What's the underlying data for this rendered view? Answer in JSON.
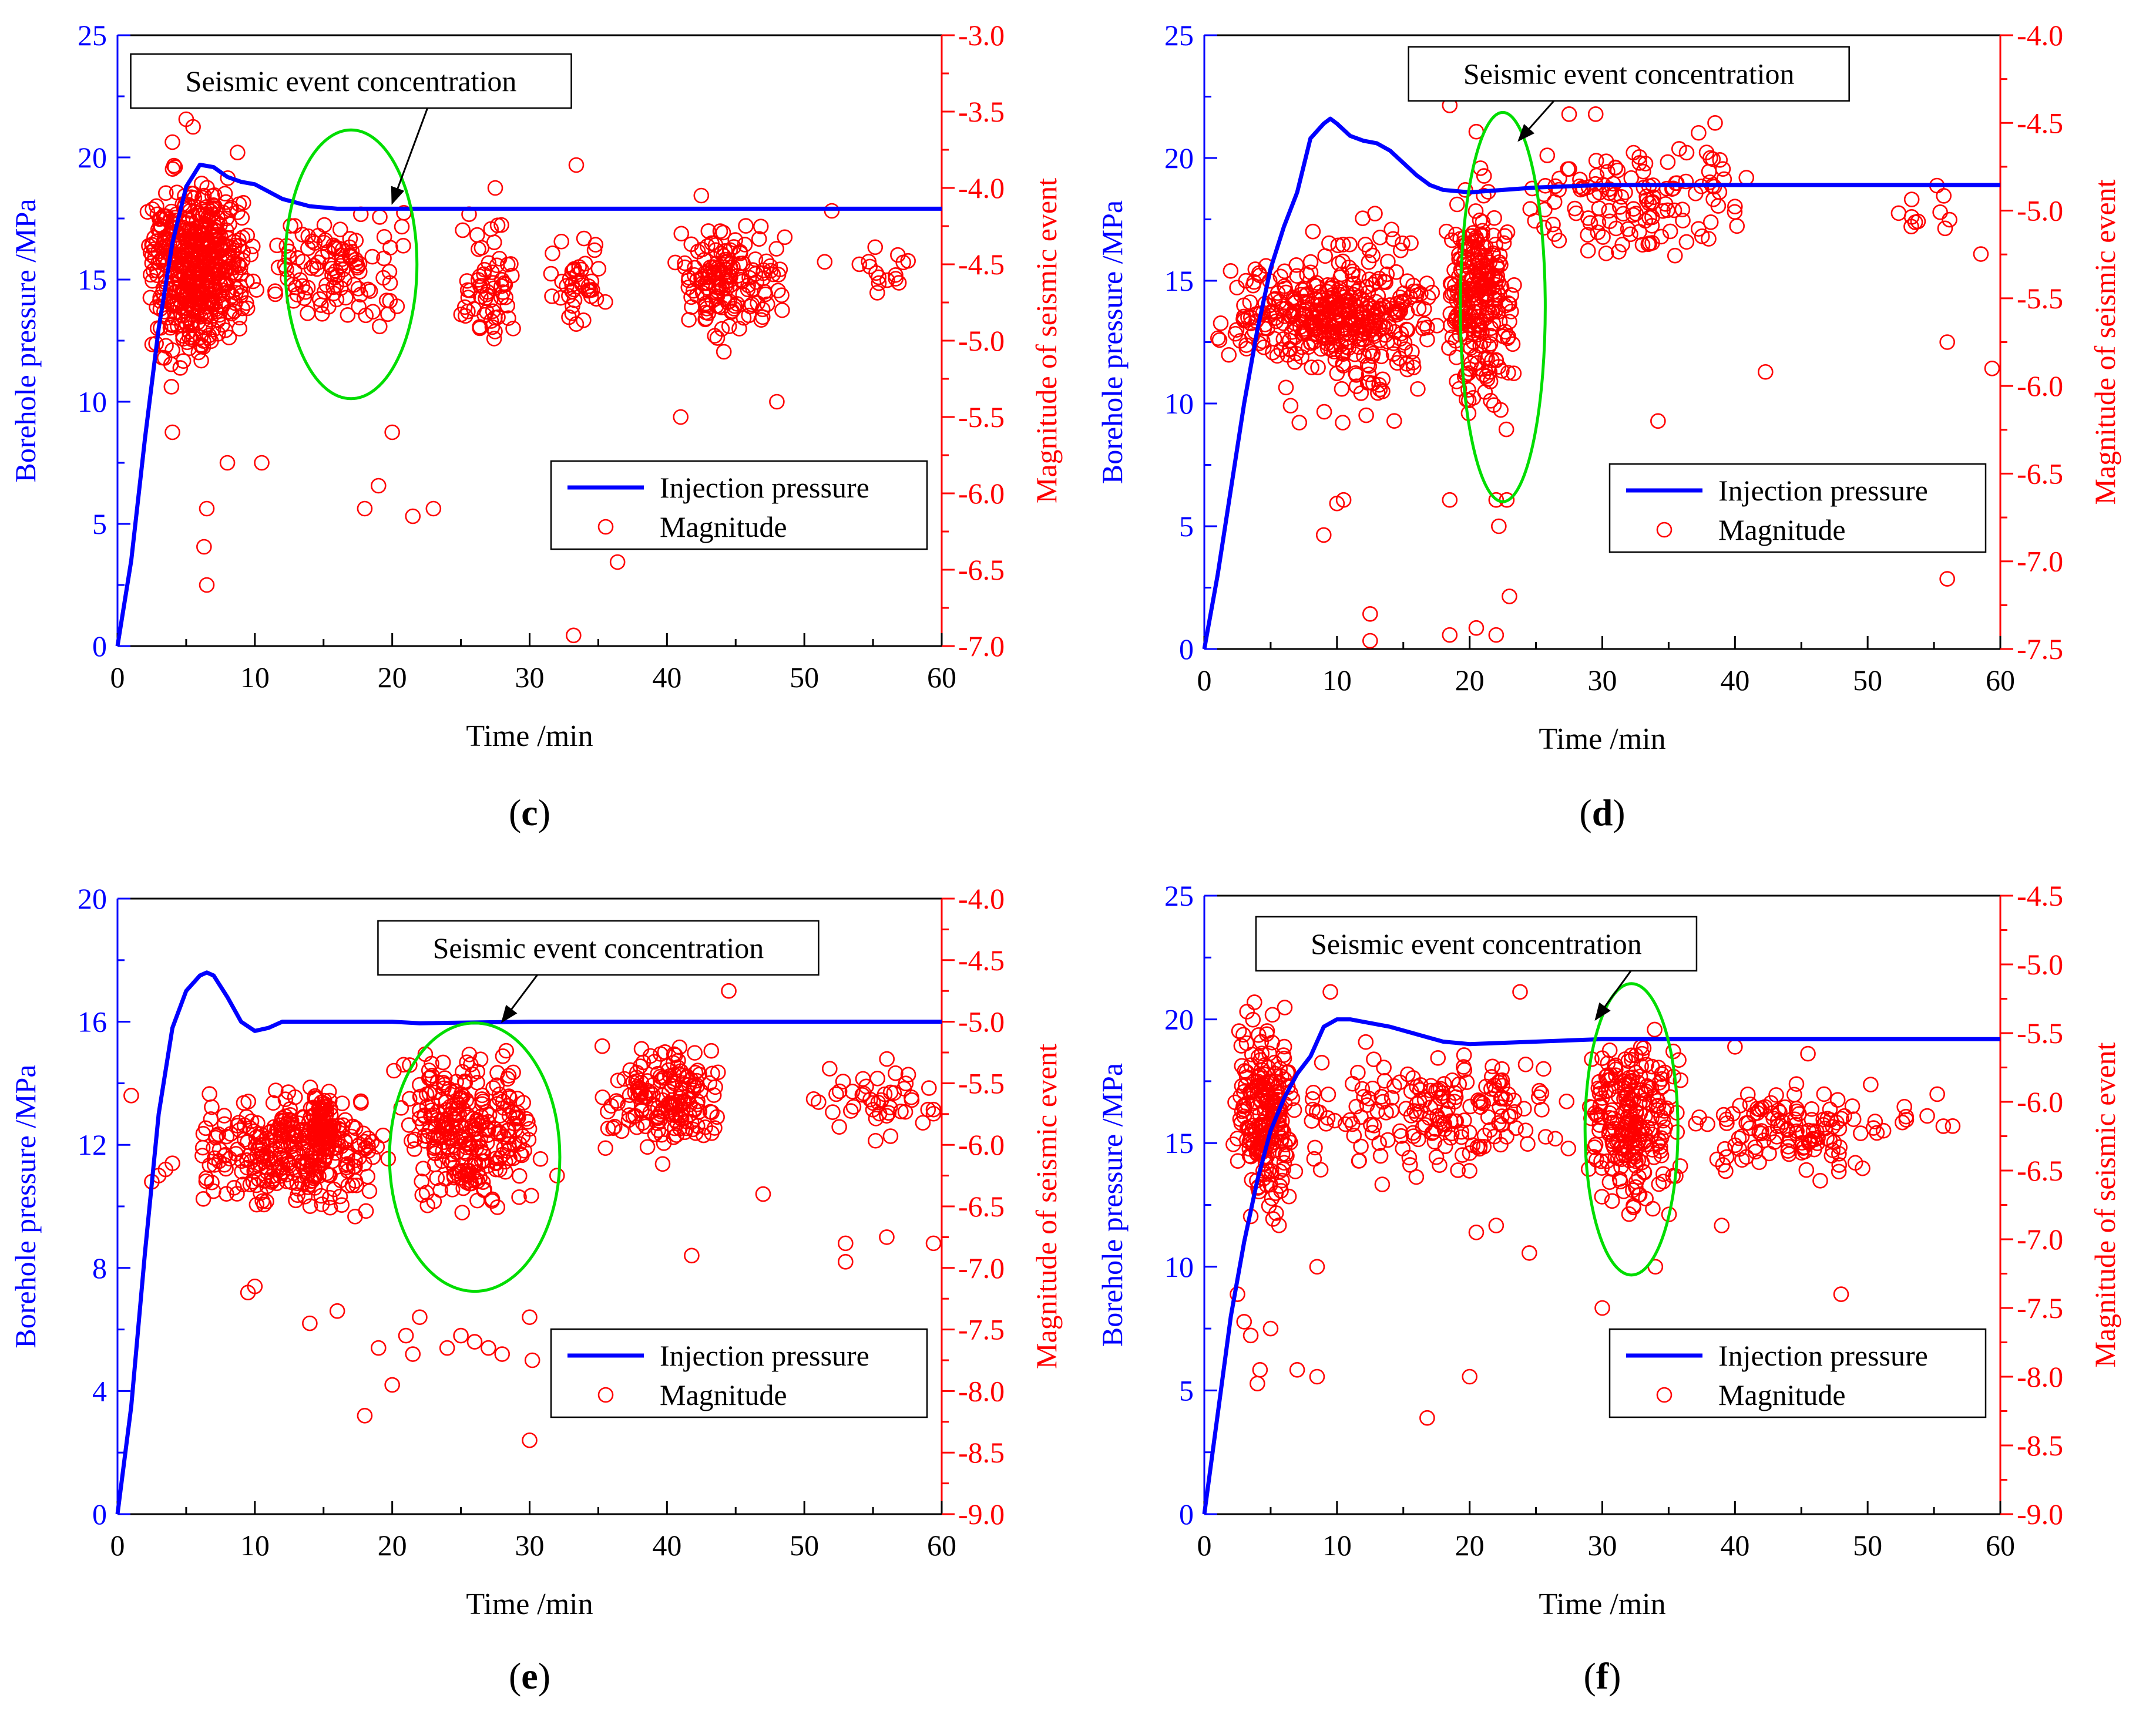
{
  "colors": {
    "pressure": "#0000ff",
    "magnitude": "#ff0000",
    "ellipse": "#00dd00",
    "axis": "#000000"
  },
  "chart_data": [
    {
      "panel_label": "c",
      "type": "scatter",
      "xlabel": "Time /min",
      "ylabel_left": "Borehole pressure /MPa",
      "ylabel_right": "Magnitude of seismic event",
      "xlim": [
        0,
        60
      ],
      "ylim_left": [
        0,
        25
      ],
      "ylim_right": [
        -7.0,
        -3.0
      ],
      "xticks": [
        "0",
        "10",
        "20",
        "30",
        "40",
        "50",
        "60"
      ],
      "yticks_left": [
        "0",
        "5",
        "10",
        "15",
        "20",
        "25"
      ],
      "yticks_right": [
        "-7.0",
        "-6.5",
        "-6.0",
        "-5.5",
        "-5.0",
        "-4.5",
        "-4.0",
        "-3.5",
        "-3.0"
      ],
      "legend": {
        "placement": "bottom-right",
        "line_label": "Injection pressure",
        "marker_label": "Magnitude"
      },
      "annotation": {
        "text": "Seismic event concentration",
        "box_x": 17,
        "box_y": -3.3,
        "arrow_to": [
          20,
          -4.1
        ]
      },
      "ellipse": {
        "cx": 17,
        "cy": -4.5,
        "rx": 4.8,
        "ry": 0.88
      },
      "pressure_curve": [
        [
          0,
          0
        ],
        [
          1,
          3.5
        ],
        [
          2,
          8.5
        ],
        [
          3,
          13
        ],
        [
          4,
          16.5
        ],
        [
          5,
          18.8
        ],
        [
          6,
          19.7
        ],
        [
          7,
          19.6
        ],
        [
          8,
          19.2
        ],
        [
          9,
          19
        ],
        [
          10,
          18.9
        ],
        [
          11,
          18.6
        ],
        [
          12,
          18.3
        ],
        [
          14,
          18
        ],
        [
          16,
          17.9
        ],
        [
          20,
          17.9
        ],
        [
          30,
          17.9
        ],
        [
          45,
          17.9
        ],
        [
          60,
          17.9
        ]
      ],
      "scatter_clusters": [
        {
          "x": [
            2,
            10
          ],
          "y": [
            -5.3,
            -3.7
          ],
          "n": 450
        },
        {
          "x": [
            2,
            8
          ],
          "y": [
            -5.6,
            -3.5
          ],
          "n": 60
        },
        {
          "x": [
            10,
            22
          ],
          "y": [
            -5.1,
            -4.0
          ],
          "n": 110
        },
        {
          "x": [
            24.5,
            29
          ],
          "y": [
            -5.2,
            -4.1
          ],
          "n": 60
        },
        {
          "x": [
            31.5,
            36
          ],
          "y": [
            -5.1,
            -4.2
          ],
          "n": 40
        },
        {
          "x": [
            40,
            49
          ],
          "y": [
            -5.1,
            -4.1
          ],
          "n": 150
        },
        {
          "x": [
            50,
            60
          ],
          "y": [
            -4.9,
            -4.2
          ],
          "n": 16
        }
      ],
      "scatter_points": [
        [
          5,
          -3.55
        ],
        [
          4,
          -3.7
        ],
        [
          5.5,
          -3.6
        ],
        [
          6.5,
          -6.1
        ],
        [
          6.3,
          -6.35
        ],
        [
          6.5,
          -6.6
        ],
        [
          8,
          -5.8
        ],
        [
          10.5,
          -5.8
        ],
        [
          4,
          -5.6
        ],
        [
          18,
          -6.1
        ],
        [
          19,
          -5.95
        ],
        [
          21.5,
          -6.15
        ],
        [
          23,
          -6.1
        ],
        [
          20,
          -5.6
        ],
        [
          33.2,
          -6.93
        ],
        [
          36.4,
          -6.45
        ],
        [
          33.4,
          -3.85
        ],
        [
          27.5,
          -4.0
        ],
        [
          42.5,
          -4.05
        ],
        [
          52,
          -4.15
        ],
        [
          48,
          -5.4
        ],
        [
          41,
          -5.5
        ]
      ]
    },
    {
      "panel_label": "d",
      "type": "scatter",
      "xlabel": "Time /min",
      "ylabel_left": "Borehole pressure /MPa",
      "ylabel_right": "Magnitude of seismic event",
      "xlim": [
        0,
        60
      ],
      "ylim_left": [
        0,
        25
      ],
      "ylim_right": [
        -7.5,
        -4.0
      ],
      "xticks": [
        "0",
        "10",
        "20",
        "30",
        "40",
        "50",
        "60"
      ],
      "yticks_left": [
        "0",
        "5",
        "10",
        "15",
        "20",
        "25"
      ],
      "yticks_right": [
        "-7.5",
        "-7.0",
        "-6.5",
        "-6.0",
        "-5.5",
        "-5.0",
        "-4.5",
        "-4.0"
      ],
      "legend": {
        "placement": "bottom-right",
        "line_label": "Injection pressure",
        "marker_label": "Magnitude"
      },
      "annotation": {
        "text": "Seismic event concentration",
        "box_x": 32,
        "box_y": -4.22,
        "arrow_to": [
          23.7,
          -4.6
        ]
      },
      "ellipse": {
        "cx": 22.5,
        "cy": -5.55,
        "rx": 3.2,
        "ry": 1.11
      },
      "pressure_curve": [
        [
          0,
          0
        ],
        [
          1,
          3
        ],
        [
          2,
          6.5
        ],
        [
          3,
          10
        ],
        [
          4,
          13
        ],
        [
          5,
          15.5
        ],
        [
          6,
          17.2
        ],
        [
          7,
          18.6
        ],
        [
          8,
          20.8
        ],
        [
          9,
          21.4
        ],
        [
          9.5,
          21.6
        ],
        [
          10,
          21.4
        ],
        [
          11,
          20.9
        ],
        [
          12,
          20.7
        ],
        [
          13,
          20.6
        ],
        [
          14,
          20.3
        ],
        [
          15,
          19.8
        ],
        [
          16,
          19.3
        ],
        [
          17,
          18.9
        ],
        [
          18,
          18.7
        ],
        [
          20,
          18.6
        ],
        [
          25,
          18.8
        ],
        [
          30,
          18.9
        ],
        [
          40,
          18.9
        ],
        [
          60,
          18.9
        ]
      ],
      "scatter_clusters": [
        {
          "x": [
            0,
            18
          ],
          "y": [
            -6.0,
            -5.2
          ],
          "n": 280
        },
        {
          "x": [
            5,
            18
          ],
          "y": [
            -6.4,
            -4.9
          ],
          "n": 140
        },
        {
          "x": [
            18,
            23.5
          ],
          "y": [
            -6.3,
            -4.7
          ],
          "n": 260
        },
        {
          "x": [
            23.5,
            42
          ],
          "y": [
            -5.4,
            -4.5
          ],
          "n": 130
        },
        {
          "x": [
            45,
            60
          ],
          "y": [
            -5.4,
            -4.7
          ],
          "n": 12
        }
      ],
      "scatter_points": [
        [
          10,
          -6.67
        ],
        [
          10.5,
          -6.65
        ],
        [
          9,
          -6.85
        ],
        [
          12.5,
          -7.3
        ],
        [
          12.5,
          -7.46
        ],
        [
          18.5,
          -7.42
        ],
        [
          20.5,
          -7.38
        ],
        [
          22,
          -7.42
        ],
        [
          23,
          -7.2
        ],
        [
          22.2,
          -6.8
        ],
        [
          22,
          -6.65
        ],
        [
          22.8,
          -6.65
        ],
        [
          18.5,
          -6.65
        ],
        [
          34.2,
          -6.2
        ],
        [
          42.3,
          -5.92
        ],
        [
          56,
          -5.75
        ],
        [
          59.8,
          -5.9
        ],
        [
          56,
          -7.1
        ],
        [
          18.5,
          -4.4
        ],
        [
          27.5,
          -4.45
        ],
        [
          29.5,
          -4.45
        ],
        [
          38.5,
          -4.5
        ],
        [
          20.5,
          -4.55
        ]
      ]
    },
    {
      "panel_label": "e",
      "type": "scatter",
      "xlabel": "Time /min",
      "ylabel_left": "Borehole pressure /MPa",
      "ylabel_right": "Magnitude of seismic event",
      "xlim": [
        0,
        60
      ],
      "ylim_left": [
        0,
        20
      ],
      "ylim_right": [
        -9.0,
        -4.0
      ],
      "xticks": [
        "0",
        "10",
        "20",
        "30",
        "40",
        "50",
        "60"
      ],
      "yticks_left": [
        "0",
        "4",
        "8",
        "12",
        "16",
        "20"
      ],
      "yticks_right": [
        "-9.0",
        "-8.5",
        "-8.0",
        "-7.5",
        "-7.0",
        "-6.5",
        "-6.0",
        "-5.5",
        "-5.0",
        "-4.5",
        "-4.0"
      ],
      "legend": {
        "placement": "bottom-right",
        "line_label": "Injection pressure",
        "marker_label": "Magnitude"
      },
      "annotation": {
        "text": "Seismic event concentration",
        "box_x": 35,
        "box_y": -4.4,
        "arrow_to": [
          28,
          -5.0
        ]
      },
      "ellipse": {
        "cx": 26,
        "cy": -6.1,
        "rx": 6.2,
        "ry": 1.09
      },
      "pressure_curve": [
        [
          0,
          0
        ],
        [
          1,
          3.5
        ],
        [
          2,
          8.5
        ],
        [
          3,
          13
        ],
        [
          4,
          15.8
        ],
        [
          5,
          17
        ],
        [
          6,
          17.5
        ],
        [
          6.5,
          17.6
        ],
        [
          7,
          17.5
        ],
        [
          8,
          16.8
        ],
        [
          9,
          16
        ],
        [
          10,
          15.7
        ],
        [
          11,
          15.8
        ],
        [
          12,
          16
        ],
        [
          15,
          16
        ],
        [
          17,
          16
        ],
        [
          20,
          16
        ],
        [
          22,
          15.95
        ],
        [
          30,
          16
        ],
        [
          60,
          16
        ]
      ],
      "scatter_clusters": [
        {
          "x": [
            5,
            20
          ],
          "y": [
            -6.7,
            -5.4
          ],
          "n": 300
        },
        {
          "x": [
            14,
            16
          ],
          "y": [
            -6.2,
            -5.5
          ],
          "n": 90
        },
        {
          "x": [
            20,
            31
          ],
          "y": [
            -6.7,
            -5.1
          ],
          "n": 280
        },
        {
          "x": [
            35,
            45
          ],
          "y": [
            -6.2,
            -5.1
          ],
          "n": 170
        },
        {
          "x": [
            50,
            60
          ],
          "y": [
            -6.1,
            -5.1
          ],
          "n": 45
        }
      ],
      "scatter_points": [
        [
          1,
          -5.6
        ],
        [
          2.5,
          -6.3
        ],
        [
          3,
          -6.25
        ],
        [
          3.5,
          -6.2
        ],
        [
          4,
          -6.15
        ],
        [
          9.5,
          -7.2
        ],
        [
          10,
          -7.15
        ],
        [
          14,
          -7.45
        ],
        [
          16,
          -7.35
        ],
        [
          18,
          -8.2
        ],
        [
          19,
          -7.65
        ],
        [
          20,
          -7.95
        ],
        [
          21,
          -7.55
        ],
        [
          21.5,
          -7.7
        ],
        [
          22,
          -7.4
        ],
        [
          24,
          -7.65
        ],
        [
          25,
          -7.55
        ],
        [
          26,
          -7.6
        ],
        [
          27,
          -7.65
        ],
        [
          28,
          -7.7
        ],
        [
          30,
          -7.4
        ],
        [
          30.2,
          -7.75
        ],
        [
          30,
          -8.4
        ],
        [
          32,
          -6.25
        ],
        [
          41.8,
          -6.9
        ],
        [
          44.5,
          -4.75
        ],
        [
          47,
          -6.4
        ],
        [
          53,
          -6.95
        ],
        [
          53,
          -6.8
        ],
        [
          56,
          -6.75
        ],
        [
          59.5,
          -6.8
        ]
      ]
    },
    {
      "panel_label": "f",
      "type": "scatter",
      "xlabel": "Time /min",
      "ylabel_left": "Borehole pressure /MPa",
      "ylabel_right": "Magnitude of seismic event",
      "xlim": [
        0,
        60
      ],
      "ylim_left": [
        0,
        25
      ],
      "ylim_right": [
        -9.0,
        -4.5
      ],
      "xticks": [
        "0",
        "10",
        "20",
        "30",
        "40",
        "50",
        "60"
      ],
      "yticks_left": [
        "0",
        "5",
        "10",
        "15",
        "20",
        "25"
      ],
      "yticks_right": [
        "-9.0",
        "-8.5",
        "-8.0",
        "-7.5",
        "-7.0",
        "-6.5",
        "-6.0",
        "-5.5",
        "-5.0",
        "-4.5"
      ],
      "legend": {
        "placement": "bottom-right",
        "line_label": "Injection pressure",
        "marker_label": "Magnitude"
      },
      "annotation": {
        "text": "Seismic event concentration",
        "box_x": 20.5,
        "box_y": -4.85,
        "arrow_to": [
          29.5,
          -5.4
        ]
      },
      "ellipse": {
        "cx": 32.2,
        "cy": -6.2,
        "rx": 3.5,
        "ry": 1.06
      },
      "pressure_curve": [
        [
          0,
          0
        ],
        [
          1,
          4
        ],
        [
          2,
          8
        ],
        [
          3,
          11
        ],
        [
          4,
          13.5
        ],
        [
          5,
          15.5
        ],
        [
          6,
          16.8
        ],
        [
          7,
          17.8
        ],
        [
          8,
          18.5
        ],
        [
          9,
          19.7
        ],
        [
          10,
          20
        ],
        [
          11,
          20
        ],
        [
          12,
          19.9
        ],
        [
          14,
          19.7
        ],
        [
          16,
          19.4
        ],
        [
          18,
          19.1
        ],
        [
          20,
          19
        ],
        [
          25,
          19.1
        ],
        [
          30,
          19.2
        ],
        [
          60,
          19.2
        ]
      ],
      "scatter_clusters": [
        {
          "x": [
            2,
            7
          ],
          "y": [
            -7.0,
            -5.2
          ],
          "n": 230
        },
        {
          "x": [
            7,
            28
          ],
          "y": [
            -6.7,
            -5.5
          ],
          "n": 180
        },
        {
          "x": [
            28.5,
            36
          ],
          "y": [
            -7.0,
            -5.3
          ],
          "n": 230
        },
        {
          "x": [
            36,
            52
          ],
          "y": [
            -6.6,
            -5.8
          ],
          "n": 120
        },
        {
          "x": [
            52,
            58
          ],
          "y": [
            -6.3,
            -5.9
          ],
          "n": 8
        }
      ],
      "scatter_points": [
        [
          2.5,
          -7.4
        ],
        [
          3,
          -7.6
        ],
        [
          3.5,
          -7.7
        ],
        [
          4,
          -8.05
        ],
        [
          4.2,
          -7.95
        ],
        [
          5,
          -7.65
        ],
        [
          7,
          -7.95
        ],
        [
          8.5,
          -8.0
        ],
        [
          8.5,
          -7.2
        ],
        [
          16.8,
          -8.3
        ],
        [
          20,
          -8.0
        ],
        [
          20.5,
          -6.95
        ],
        [
          22,
          -6.9
        ],
        [
          24.5,
          -7.1
        ],
        [
          30,
          -7.5
        ],
        [
          34,
          -7.2
        ],
        [
          39,
          -6.9
        ],
        [
          48,
          -7.4
        ],
        [
          45.5,
          -5.65
        ],
        [
          40,
          -5.6
        ],
        [
          23.8,
          -5.2
        ],
        [
          9.5,
          -5.2
        ]
      ]
    }
  ]
}
